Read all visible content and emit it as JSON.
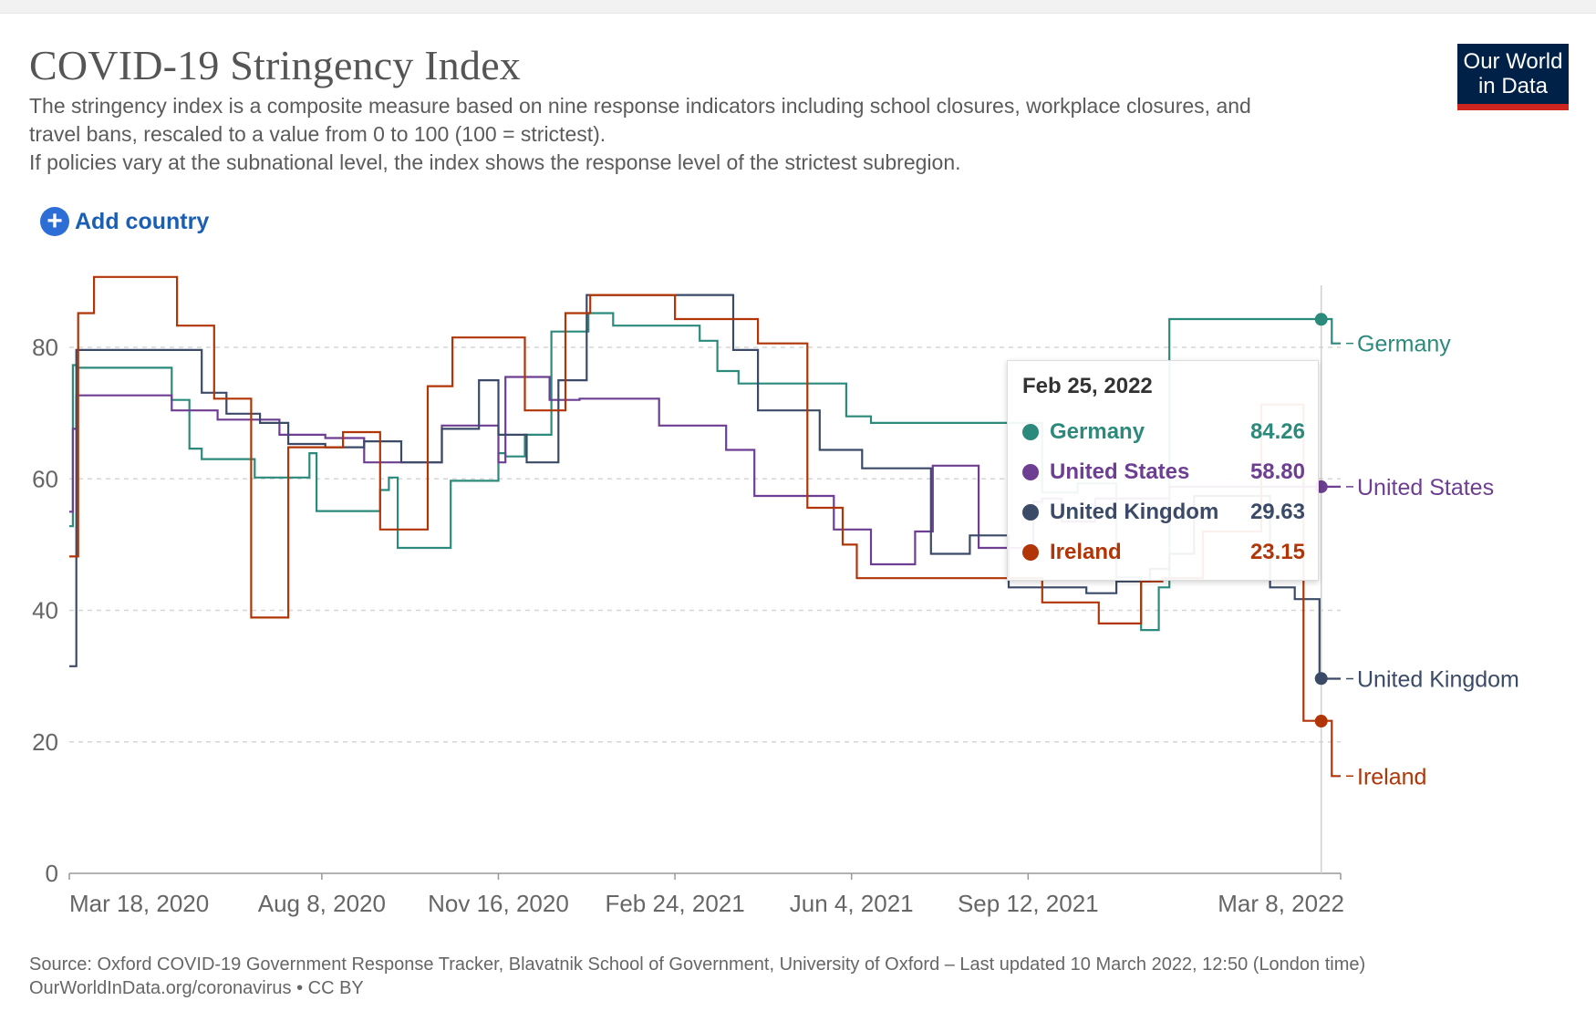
{
  "header": {
    "title": "COVID-19 Stringency Index",
    "subtitle_lines": [
      "The stringency index is a composite measure based on nine response indicators including school closures, workplace closures, and",
      "travel bans, rescaled to a value from 0 to 100 (100 = strictest).",
      "If policies vary at the subnational level, the index shows the response level of the strictest subregion."
    ]
  },
  "logo": {
    "line1": "Our World",
    "line2": "in Data"
  },
  "controls": {
    "add_country_label": "Add country",
    "add_country_icon": "plus-circle-icon"
  },
  "colors": {
    "germany": "#2c8a7c",
    "united_states": "#6d3e91",
    "united_kingdom": "#3a4a67",
    "ireland": "#b13507",
    "grid": "#d6d6d6",
    "axis": "#666666"
  },
  "tooltip": {
    "date": "Feb 25, 2022",
    "rows": [
      {
        "name": "Germany",
        "value": "84.26",
        "color": "#2c8a7c"
      },
      {
        "name": "United States",
        "value": "58.80",
        "color": "#6d3e91"
      },
      {
        "name": "United Kingdom",
        "value": "29.63",
        "color": "#3a4a67"
      },
      {
        "name": "Ireland",
        "value": "23.15",
        "color": "#b13507"
      }
    ]
  },
  "chart_data": {
    "type": "line",
    "title": "COVID-19 Stringency Index",
    "ylim": [
      0,
      90
    ],
    "y_ticks": [
      0,
      20,
      40,
      60,
      80
    ],
    "y_tick_labels": [
      "0",
      "20",
      "40",
      "60",
      "80"
    ],
    "x_ticks": [
      "2020-03-18",
      "2020-08-08",
      "2020-11-16",
      "2021-02-24",
      "2021-06-04",
      "2021-09-12",
      "2022-03-08"
    ],
    "x_tick_labels": [
      "Mar 18, 2020",
      "Aug 8, 2020",
      "Nov 16, 2020",
      "Feb 24, 2021",
      "Jun 4, 2021",
      "Sep 12, 2021",
      "Mar 8, 2022"
    ],
    "xlim": [
      "2020-03-18",
      "2022-03-08"
    ],
    "grid": "horizontal dashed",
    "legend": "labels at line ends (right)",
    "highlight_date": "2022-02-25",
    "series": [
      {
        "name": "Germany",
        "color": "#2c8a7c",
        "x": [
          "2020-03-18",
          "2020-03-20",
          "2020-03-22",
          "2020-05-10",
          "2020-05-15",
          "2020-05-25",
          "2020-06-01",
          "2020-07-01",
          "2020-07-05",
          "2020-08-01",
          "2020-08-05",
          "2020-08-20",
          "2020-09-10",
          "2020-09-15",
          "2020-09-20",
          "2020-10-10",
          "2020-10-20",
          "2020-11-16",
          "2020-11-20",
          "2020-12-01",
          "2020-12-16",
          "2021-01-06",
          "2021-01-20",
          "2021-02-15",
          "2021-03-10",
          "2021-03-20",
          "2021-04-01",
          "2021-04-24",
          "2021-06-01",
          "2021-06-15",
          "2021-08-23",
          "2021-09-20",
          "2021-10-10",
          "2021-11-01",
          "2021-11-15",
          "2021-11-25",
          "2021-12-01",
          "2022-03-01",
          "2022-03-03",
          "2022-03-08"
        ],
        "values": [
          52.8,
          77.3,
          76.9,
          76.9,
          72.0,
          64.6,
          63.0,
          60.2,
          60.2,
          63.9,
          55.1,
          55.1,
          58.3,
          60.2,
          49.5,
          49.5,
          59.7,
          63.9,
          63.4,
          66.7,
          82.4,
          85.2,
          83.3,
          83.3,
          81.0,
          76.4,
          74.5,
          74.5,
          69.5,
          68.5,
          68.5,
          57.9,
          59.3,
          45.0,
          37.0,
          43.5,
          84.3,
          84.3,
          80.6,
          80.6
        ]
      },
      {
        "name": "United States",
        "color": "#6d3e91",
        "x": [
          "2020-03-18",
          "2020-03-20",
          "2020-03-22",
          "2020-05-01",
          "2020-05-15",
          "2020-06-10",
          "2020-07-15",
          "2020-08-10",
          "2020-09-01",
          "2020-10-01",
          "2020-10-15",
          "2020-11-16",
          "2020-11-20",
          "2020-12-15",
          "2021-01-01",
          "2021-01-20",
          "2021-02-15",
          "2021-03-25",
          "2021-04-10",
          "2021-05-10",
          "2021-05-25",
          "2021-06-15",
          "2021-07-10",
          "2021-07-20",
          "2021-08-15",
          "2021-09-05",
          "2021-09-15",
          "2021-09-20",
          "2021-10-01",
          "2021-10-20",
          "2021-12-01",
          "2022-03-08"
        ],
        "values": [
          55.0,
          67.6,
          72.7,
          72.7,
          70.4,
          69.0,
          66.7,
          66.2,
          62.5,
          62.5,
          68.1,
          62.5,
          75.5,
          72.0,
          72.2,
          72.2,
          68.1,
          64.4,
          57.4,
          57.4,
          52.3,
          47.0,
          52.0,
          62.0,
          49.5,
          49.5,
          56.5,
          57.0,
          53.5,
          57.0,
          58.8,
          58.8
        ]
      },
      {
        "name": "United Kingdom",
        "color": "#3a4a67",
        "x": [
          "2020-03-18",
          "2020-03-22",
          "2020-03-24",
          "2020-05-13",
          "2020-06-01",
          "2020-06-15",
          "2020-07-04",
          "2020-07-20",
          "2020-08-10",
          "2020-09-01",
          "2020-09-22",
          "2020-10-15",
          "2020-11-05",
          "2020-11-16",
          "2020-12-02",
          "2020-12-20",
          "2021-01-05",
          "2021-02-24",
          "2021-03-29",
          "2021-04-12",
          "2021-05-17",
          "2021-06-10",
          "2021-07-19",
          "2021-08-10",
          "2021-09-01",
          "2021-10-15",
          "2021-11-01",
          "2021-11-20",
          "2021-12-01",
          "2021-12-15",
          "2022-01-27",
          "2022-02-10",
          "2022-02-24",
          "2022-03-08"
        ],
        "values": [
          31.5,
          79.6,
          79.6,
          79.6,
          73.1,
          69.9,
          68.5,
          65.3,
          64.8,
          65.7,
          62.5,
          67.6,
          75.0,
          66.7,
          62.5,
          75.0,
          87.96,
          87.96,
          79.6,
          70.4,
          64.4,
          61.6,
          48.6,
          51.4,
          43.5,
          42.6,
          44.4,
          46.3,
          48.6,
          57.4,
          43.5,
          41.7,
          29.6,
          29.6
        ]
      },
      {
        "name": "Ireland",
        "color": "#b13507",
        "x": [
          "2020-03-18",
          "2020-03-23",
          "2020-04-01",
          "2020-05-18",
          "2020-06-08",
          "2020-06-29",
          "2020-07-20",
          "2020-08-20",
          "2020-09-10",
          "2020-10-07",
          "2020-10-21",
          "2020-12-01",
          "2020-12-24",
          "2021-01-07",
          "2021-02-24",
          "2021-04-12",
          "2021-05-10",
          "2021-05-30",
          "2021-06-07",
          "2021-07-26",
          "2021-09-20",
          "2021-10-22",
          "2021-11-15",
          "2021-11-27",
          "2021-12-20",
          "2022-01-22",
          "2022-02-15",
          "2022-03-01",
          "2022-03-03",
          "2022-03-08"
        ],
        "values": [
          48.2,
          85.2,
          90.7,
          83.3,
          72.2,
          38.9,
          64.8,
          67.1,
          52.3,
          74.1,
          81.5,
          70.4,
          85.2,
          87.96,
          84.3,
          80.6,
          55.6,
          50.0,
          44.9,
          44.9,
          41.2,
          38.0,
          44.4,
          44.9,
          52.0,
          71.3,
          23.2,
          23.2,
          14.8,
          14.8
        ]
      }
    ]
  },
  "end_labels": [
    {
      "name": "Germany",
      "value": 80.6,
      "color": "#2c8a7c"
    },
    {
      "name": "United States",
      "value": 58.8,
      "color": "#6d3e91"
    },
    {
      "name": "United Kingdom",
      "value": 29.6,
      "color": "#3a4a67"
    },
    {
      "name": "Ireland",
      "value": 14.8,
      "color": "#b13507"
    }
  ],
  "footer": {
    "source": "Source: Oxford COVID-19 Government Response Tracker, Blavatnik School of Government, University of Oxford – Last updated 10 March 2022, 12:50 (London time)",
    "site": "OurWorldInData.org/coronavirus • CC BY"
  }
}
